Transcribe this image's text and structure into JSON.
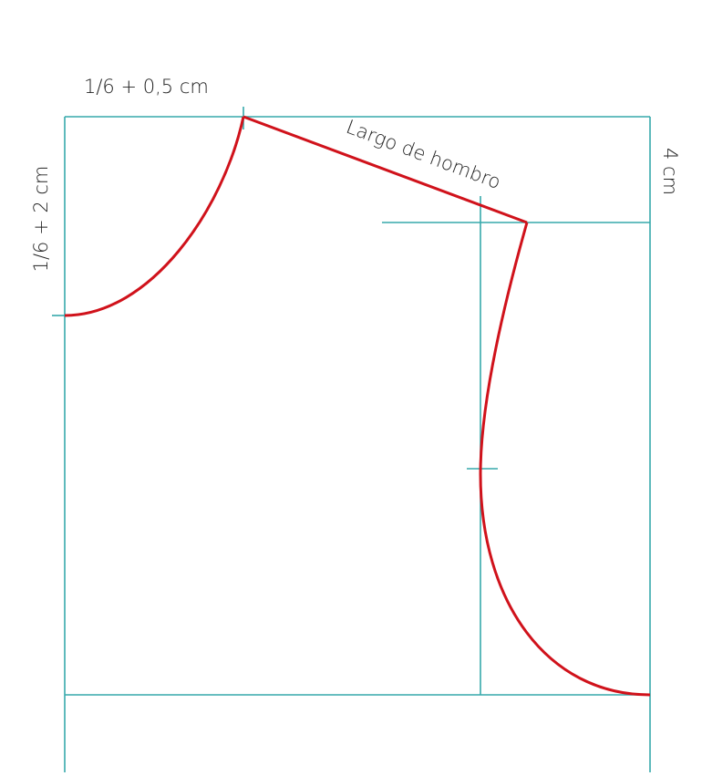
{
  "labels": {
    "neck_width": "1/6 + 0,5 cm",
    "neck_depth": "1/6 + 2 cm",
    "shoulder_drop": "4 cm",
    "shoulder_length": "Largo de hombro"
  }
}
